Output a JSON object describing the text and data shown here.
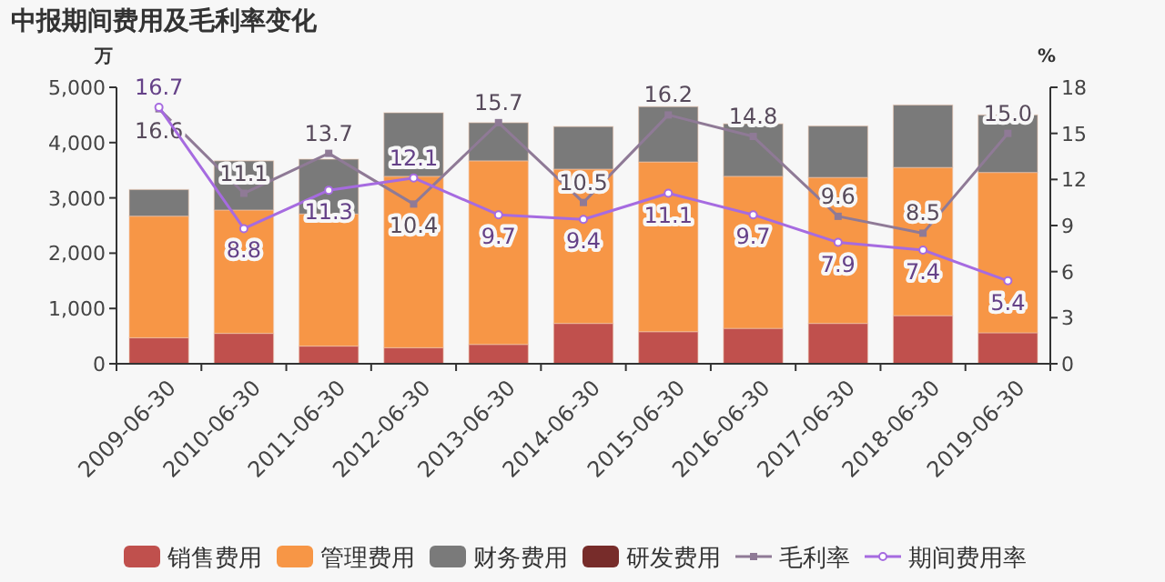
{
  "chart_data": {
    "type": "bar",
    "title": "中报期间费用及毛利率变化",
    "ylabel": "万",
    "y2label": "%",
    "stacked": true,
    "legend": "bottom",
    "grid": false,
    "categories": [
      "2009-06-30",
      "2010-06-30",
      "2011-06-30",
      "2012-06-30",
      "2013-06-30",
      "2014-06-30",
      "2015-06-30",
      "2016-06-30",
      "2017-06-30",
      "2018-06-30",
      "2019-06-30"
    ],
    "ylim": [
      0,
      5000
    ],
    "yticks": [
      {
        "value": 0,
        "label": "0"
      },
      {
        "value": 1000,
        "label": "1,000"
      },
      {
        "value": 2000,
        "label": "2,000"
      },
      {
        "value": 3000,
        "label": "3,000"
      },
      {
        "value": 4000,
        "label": "4,000"
      },
      {
        "value": 5000,
        "label": "5,000"
      }
    ],
    "y2lim": [
      0,
      18
    ],
    "y2ticks": [
      0,
      3,
      6,
      9,
      12,
      15,
      18
    ],
    "series": [
      {
        "name": "销售费用",
        "color": "#c0504d",
        "values": [
          470,
          550,
          320,
          290,
          350,
          730,
          580,
          640,
          730,
          870,
          560
        ]
      },
      {
        "name": "管理费用",
        "color": "#f79646",
        "values": [
          2200,
          2230,
          2390,
          3100,
          3320,
          2790,
          3070,
          2750,
          2640,
          2680,
          2900
        ]
      },
      {
        "name": "财务费用",
        "color": "#7a7a7a",
        "values": [
          480,
          890,
          990,
          1150,
          690,
          770,
          1000,
          950,
          930,
          1130,
          1040
        ]
      },
      {
        "name": "研发费用",
        "color": "#772c2a",
        "values": [
          null,
          null,
          null,
          null,
          null,
          null,
          null,
          null,
          null,
          null,
          null
        ]
      },
      {
        "name": "毛利率",
        "type": "line",
        "axis": "y2",
        "color": "#8f7a96",
        "marker": "square",
        "values": [
          16.6,
          11.1,
          13.7,
          10.4,
          15.7,
          10.5,
          16.2,
          14.8,
          9.6,
          8.5,
          15.0
        ],
        "value_labels": [
          "16.6",
          "11.1",
          "13.7",
          "10.4",
          "15.7",
          "10.5",
          "16.2",
          "14.8",
          "9.6",
          "8.5",
          "15.0"
        ]
      },
      {
        "name": "期间费用率",
        "type": "line",
        "axis": "y2",
        "color": "#a66be0",
        "marker": "circle",
        "values": [
          16.7,
          8.8,
          11.3,
          12.1,
          9.7,
          9.4,
          11.1,
          9.7,
          7.9,
          7.4,
          5.4
        ],
        "value_labels": [
          "16.7",
          "8.8",
          "11.3",
          "12.1",
          "9.7",
          "9.4",
          "11.1",
          "9.7",
          "7.9",
          "7.4",
          "5.4"
        ]
      }
    ]
  }
}
